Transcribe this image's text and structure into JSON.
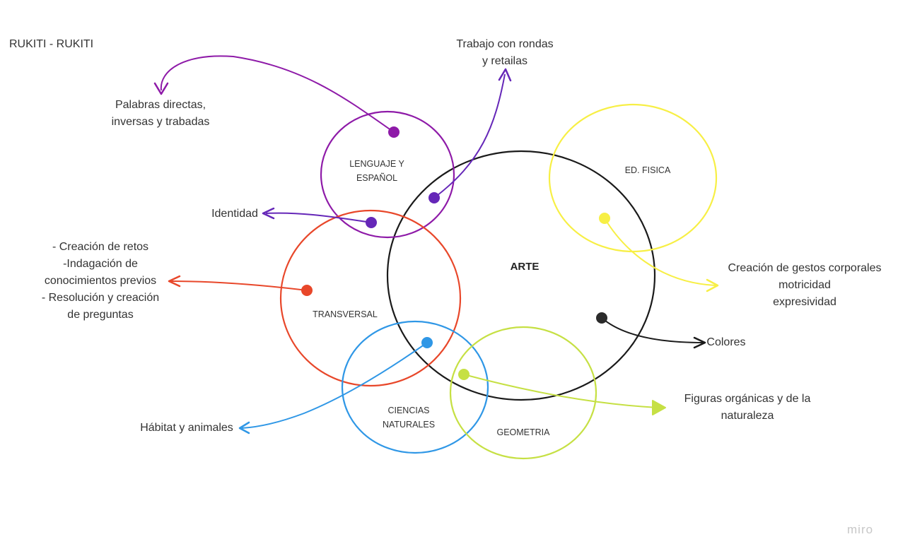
{
  "title": "RUKITI - RUKITI",
  "watermark": "miro",
  "colors": {
    "black": "#1a1a1a",
    "purple": "#8e1aa8",
    "violet": "#6527b8",
    "red": "#e8472a",
    "blue": "#2f97e6",
    "lime": "#c6e044",
    "yellow": "#f7ef45",
    "gray": "#333333"
  },
  "circles": {
    "arte": "ARTE",
    "lenguaje": [
      "LENGUAJE Y",
      "ESPAÑOL"
    ],
    "ed_fisica": "ED. FISICA",
    "transversal": "TRANSVERSAL",
    "ciencias": [
      "CIENCIAS",
      "NATURALES"
    ],
    "geometria": "GEOMETRIA"
  },
  "notes": {
    "palabras": [
      "Palabras directas,",
      "inversas y trabadas"
    ],
    "trabajo": [
      "Trabajo con rondas",
      "y retailas"
    ],
    "identidad": "Identidad",
    "retos": [
      "- Creación de retos",
      "-Indagación de",
      "conocimientos previos",
      "- Resolución y creación",
      "de preguntas"
    ],
    "gestos": [
      "Creación de gestos corporales",
      "motricidad",
      "expresividad"
    ],
    "colores": "Colores",
    "figuras": [
      "Figuras orgánicas y de la",
      "naturaleza"
    ],
    "habitat": "Hábitat y animales"
  }
}
